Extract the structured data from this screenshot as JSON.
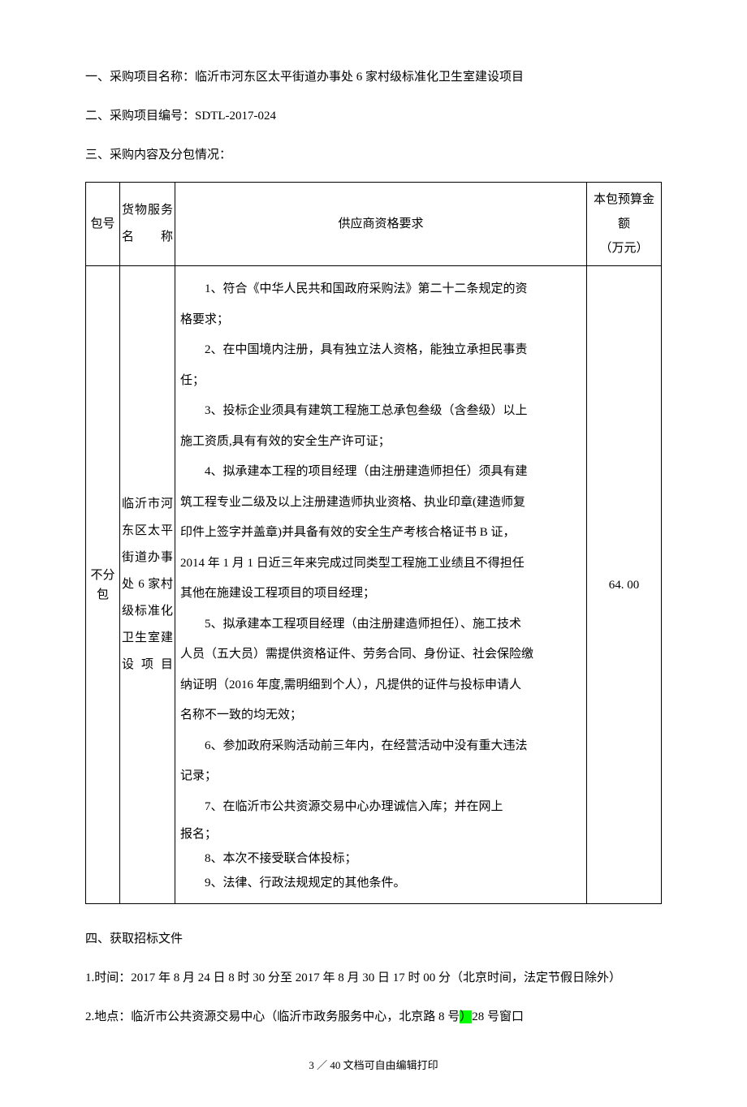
{
  "section1": {
    "label": "一、采购项目名称：",
    "value": "临沂市河东区太平街道办事处 6 家村级标准化卫生室建设项目"
  },
  "section2": {
    "label": "二、采购项目编号：",
    "value": "SDTL-2017-024"
  },
  "section3": {
    "label": "三、采购内容及分包情况："
  },
  "table": {
    "headers": {
      "col1": "包号",
      "col2_line1": "货物服务",
      "col2_line2": "名称",
      "col3": "供应商资格要求",
      "col4_line1": "本包预算金额",
      "col4_line2": "（万元）"
    },
    "row": {
      "package_num": "不分包",
      "service_name": "临沂市河东区太平街道办事处 6 家村级标准化卫生室建设项目",
      "budget": "64. 00",
      "req1_a": "1、符合《中华人民共和国政府采购法》第二十二条规定的资",
      "req1_b": "格要求；",
      "req2_a": "2、在中国境内注册，具有独立法人资格，能独立承担民事责",
      "req2_b": "任；",
      "req3_a": "3、投标企业须具有建筑工程施工总承包叁级（含叁级）以上",
      "req3_b": "施工资质,具有有效的安全生产许可证；",
      "req4_a": "4、拟承建本工程的项目经理（由注册建造师担任）须具有建",
      "req4_b": "筑工程专业二级及以上注册建造师执业资格、执业印章(建造师复",
      "req4_c": "印件上签字并盖章)并具备有效的安全生产考核合格证书 B 证，",
      "req4_d": "2014 年 1 月 1 日近三年来完成过同类型工程施工业绩且不得担任",
      "req4_e": "其他在施建设工程项目的项目经理；",
      "req5_a": "5、拟承建本工程项目经理（由注册建造师担任）、施工技术",
      "req5_b": "人员（五大员）需提供资格证件、劳务合同、身份证、社会保险缴",
      "req5_c": "纳证明（2016 年度,需明细到个人），凡提供的证件与投标申请人",
      "req5_d": "名称不一致的均无效；",
      "req6_a": "6、参加政府采购活动前三年内，在经营活动中没有重大违法",
      "req6_b": "记录；",
      "req7_a": "7、在临沂市公共资源交易中心办理诚信入库；并在网上",
      "req7_b": "报名；",
      "req8": "8、本次不接受联合体投标；",
      "req9": "9、法律、行政法规规定的其他条件。"
    }
  },
  "section4": {
    "label": "四、获取招标文件"
  },
  "item4_1": "1.时间：2017 年 8 月 24 日 8 时 30 分至 2017 年 8 月 30 日 17 时 00 分（北京时间，法定节假日除外）",
  "item4_2_a": "2.地点：临沂市公共资源交易中心（临沂市政务服务中心，北京路 8 号",
  "item4_2_hl": "）",
  "item4_2_b": "28 号窗口",
  "footer": "3 ／ 40 文档可自由编辑打印"
}
